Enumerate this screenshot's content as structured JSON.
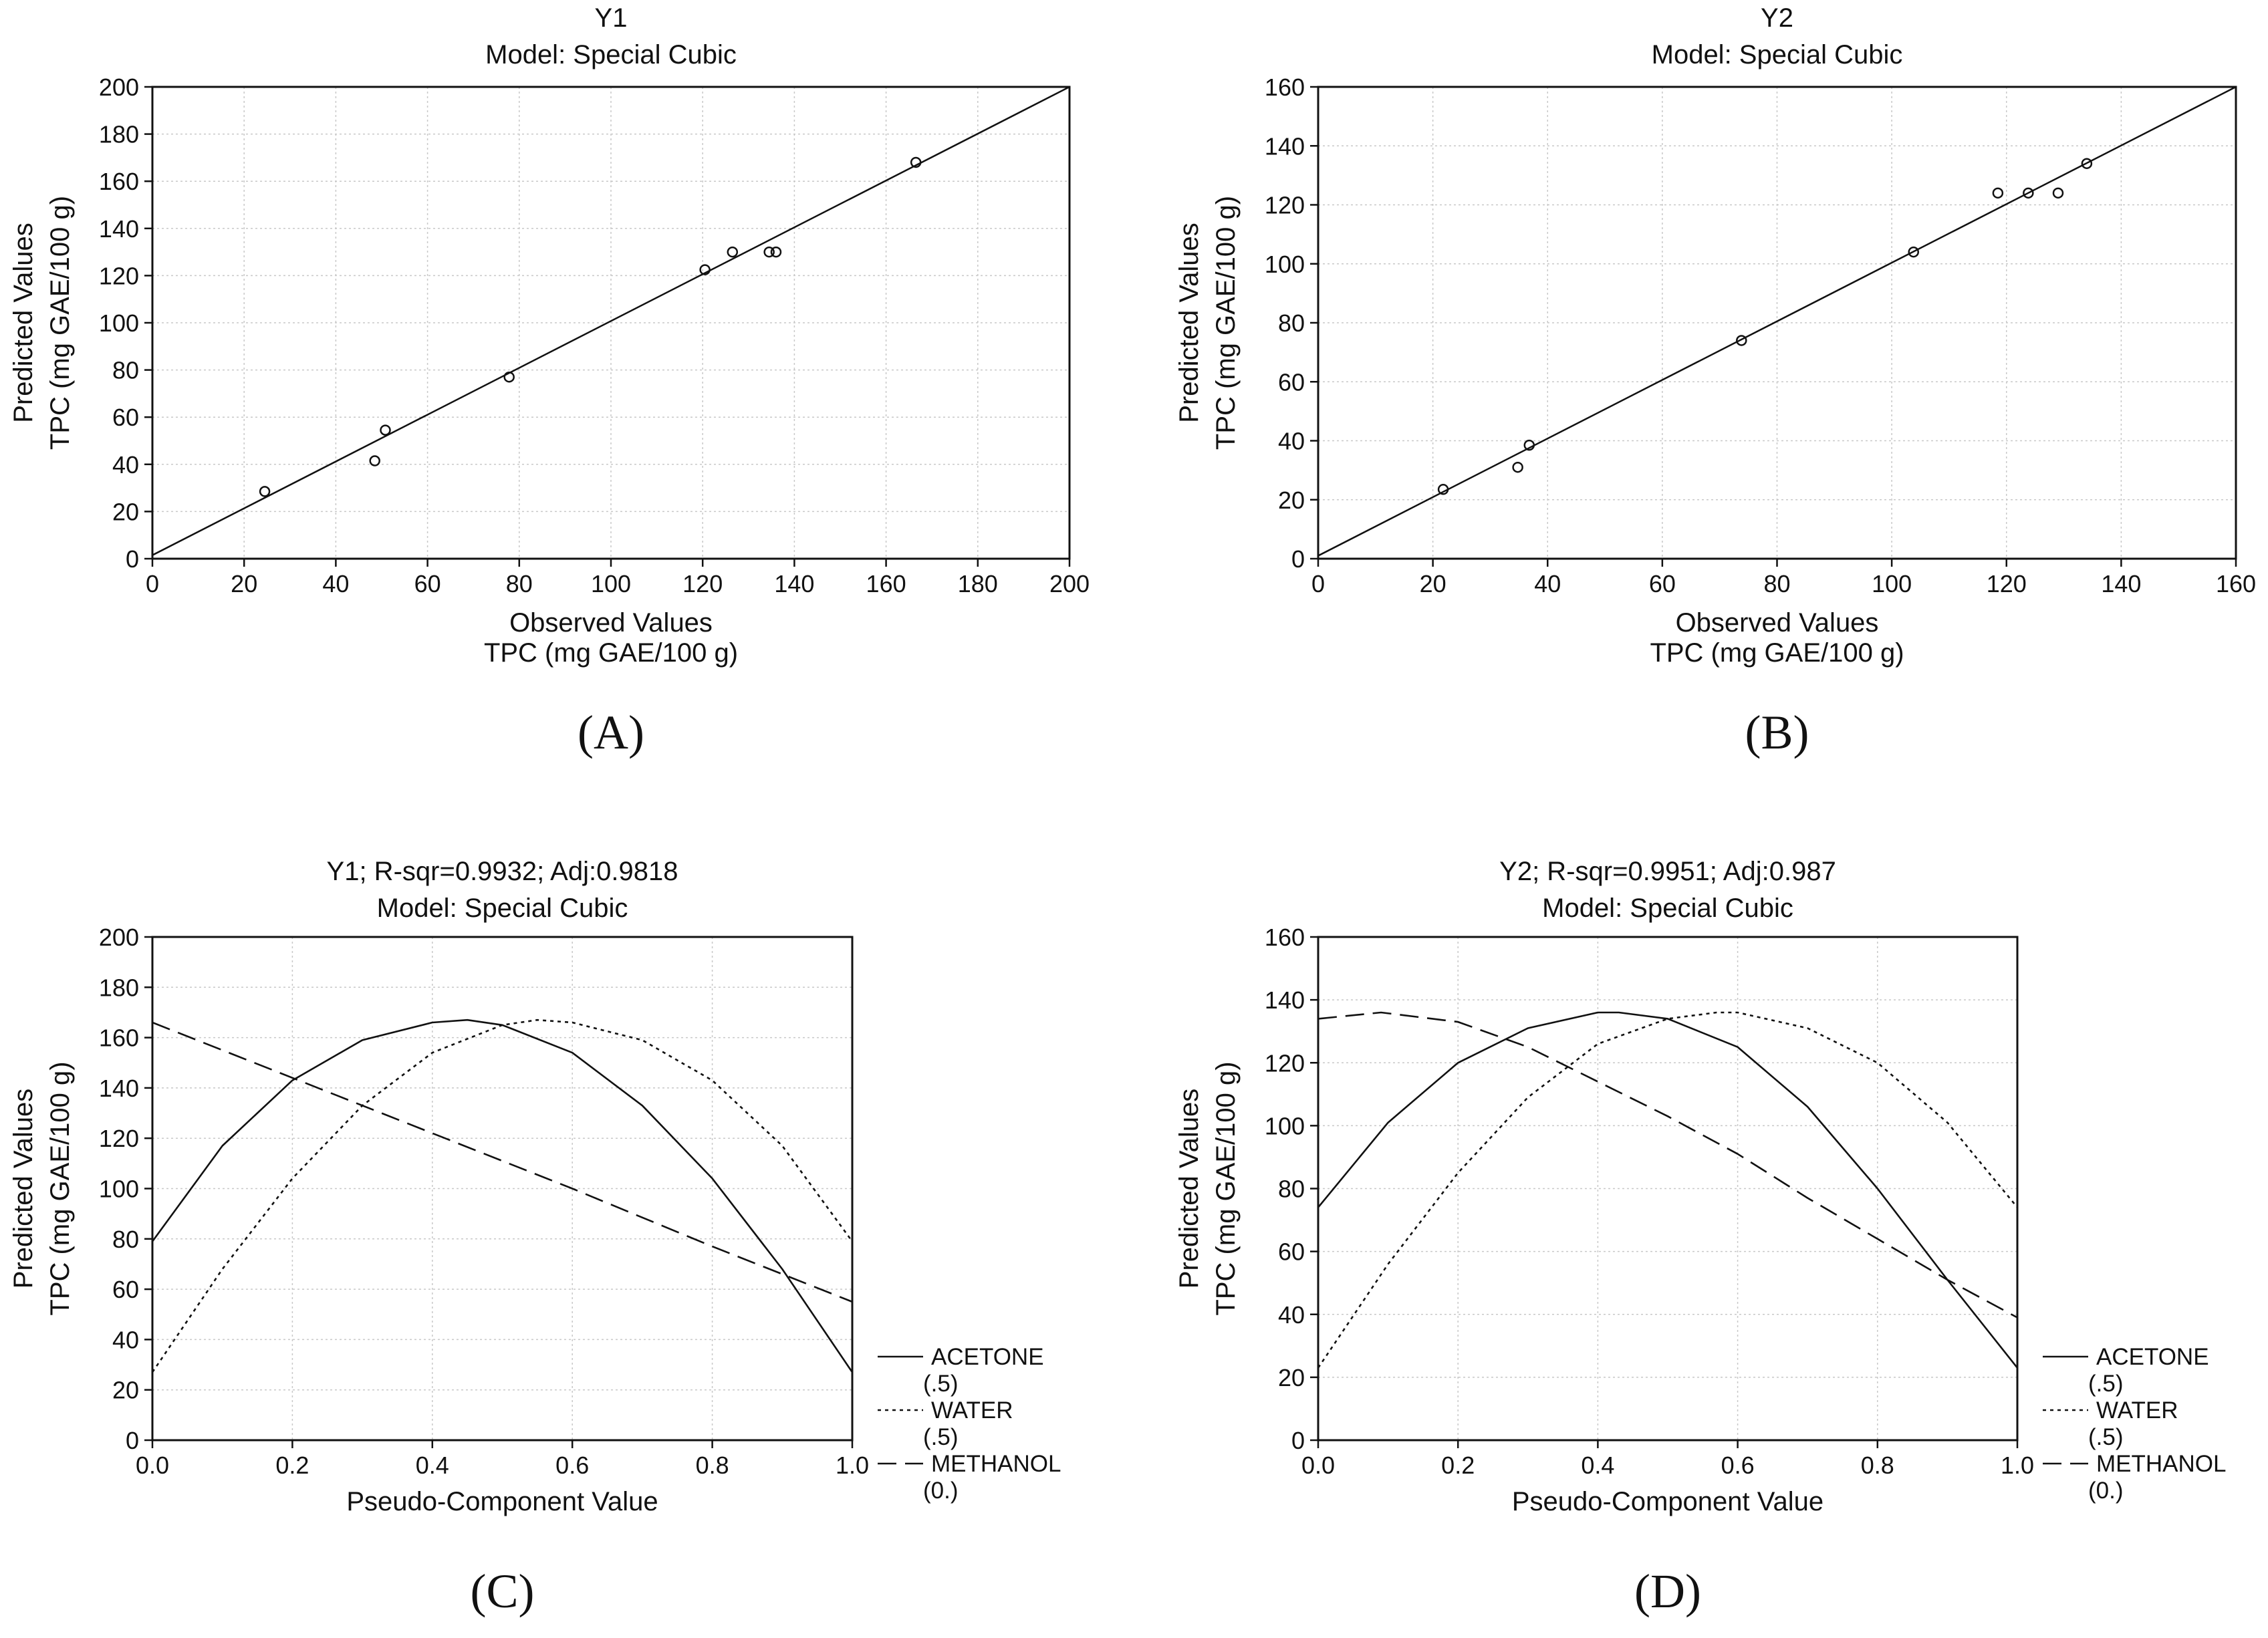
{
  "chart_data": [
    {
      "type": "scatter",
      "title": "Y1",
      "subtitle": "Model: Special Cubic",
      "xlabel": [
        "Observed Values",
        "TPC (mg GAE/100 g)"
      ],
      "ylabel": [
        "Predicted Values",
        "TPC (mg GAE/100 g)"
      ],
      "xlim": [
        0,
        200
      ],
      "ylim": [
        0,
        200
      ],
      "xticks": [
        0,
        20,
        40,
        60,
        80,
        100,
        120,
        140,
        160,
        180,
        200
      ],
      "yticks": [
        0,
        20,
        40,
        60,
        80,
        100,
        120,
        140,
        160,
        180,
        200
      ],
      "grid": true,
      "points": [
        [
          24.5,
          28.5
        ],
        [
          48.5,
          41.5
        ],
        [
          50.8,
          54.5
        ],
        [
          77.8,
          77.0
        ],
        [
          120.5,
          122.5
        ],
        [
          126.5,
          130.0
        ],
        [
          134.5,
          130.0
        ],
        [
          136.0,
          130.0
        ],
        [
          166.5,
          168.0
        ]
      ],
      "fit_line": [
        [
          0,
          1.5
        ],
        [
          200,
          200
        ]
      ],
      "panel_label": "(A)"
    },
    {
      "type": "scatter",
      "title": "Y2",
      "subtitle": "Model: Special Cubic",
      "xlabel": [
        "Observed Values",
        "TPC (mg GAE/100 g)"
      ],
      "ylabel": [
        "Predicted Values",
        "TPC (mg GAE/100 g)"
      ],
      "xlim": [
        0,
        160
      ],
      "ylim": [
        0,
        160
      ],
      "xticks": [
        0,
        20,
        40,
        60,
        80,
        100,
        120,
        140,
        160
      ],
      "yticks": [
        0,
        20,
        40,
        60,
        80,
        100,
        120,
        140,
        160
      ],
      "grid": true,
      "points": [
        [
          21.8,
          23.5
        ],
        [
          34.8,
          31.0
        ],
        [
          36.8,
          38.5
        ],
        [
          73.8,
          74.0
        ],
        [
          103.8,
          104.0
        ],
        [
          118.5,
          124.0
        ],
        [
          123.8,
          124.0
        ],
        [
          129.0,
          124.0
        ],
        [
          134.0,
          134.0
        ]
      ],
      "fit_line": [
        [
          0,
          1.0
        ],
        [
          160,
          160
        ]
      ],
      "panel_label": "(B)"
    },
    {
      "type": "line",
      "title": "Y1; R-sqr=0.9932; Adj:0.9818",
      "subtitle": "Model: Special Cubic",
      "xlabel": [
        "Pseudo-Component Value"
      ],
      "ylabel": [
        "Predicted Values",
        "TPC (mg GAE/100 g)"
      ],
      "xlim": [
        0,
        1
      ],
      "ylim": [
        0,
        200
      ],
      "xticks": [
        0,
        0.2,
        0.4,
        0.6,
        0.8,
        1
      ],
      "xtick_labels": [
        "0.0",
        "0.2",
        "0.4",
        "0.6",
        "0.8",
        "1.0"
      ],
      "yticks": [
        0,
        20,
        40,
        60,
        80,
        100,
        120,
        140,
        160,
        180,
        200
      ],
      "grid": true,
      "series": [
        {
          "name": "ACETONE",
          "note": "(.5)",
          "style": "solid",
          "x": [
            0,
            0.1,
            0.2,
            0.3,
            0.4,
            0.45,
            0.5,
            0.6,
            0.7,
            0.8,
            0.9,
            1.0
          ],
          "y": [
            79,
            117,
            143,
            159,
            166,
            167,
            165,
            154,
            133,
            104,
            68,
            27
          ]
        },
        {
          "name": "WATER",
          "note": "(.5)",
          "style": "dotted",
          "x": [
            0,
            0.1,
            0.2,
            0.3,
            0.4,
            0.5,
            0.55,
            0.6,
            0.7,
            0.8,
            0.9,
            1.0
          ],
          "y": [
            27,
            68,
            104,
            133,
            154,
            165,
            167,
            166,
            159,
            143,
            117,
            79
          ]
        },
        {
          "name": "METHANOL",
          "note": "(0.)",
          "style": "dashed",
          "x": [
            0,
            0.2,
            0.4,
            0.6,
            0.8,
            1.0
          ],
          "y": [
            166,
            144,
            122,
            100,
            77,
            55
          ]
        }
      ],
      "panel_label": "(C)"
    },
    {
      "type": "line",
      "title": "Y2; R-sqr=0.9951; Adj:0.987",
      "subtitle": "Model: Special Cubic",
      "xlabel": [
        "Pseudo-Component Value"
      ],
      "ylabel": [
        "Predicted Values",
        "TPC (mg GAE/100 g)"
      ],
      "xlim": [
        0,
        1
      ],
      "ylim": [
        0,
        160
      ],
      "xticks": [
        0,
        0.2,
        0.4,
        0.6,
        0.8,
        1
      ],
      "xtick_labels": [
        "0.0",
        "0.2",
        "0.4",
        "0.6",
        "0.8",
        "1.0"
      ],
      "yticks": [
        0,
        20,
        40,
        60,
        80,
        100,
        120,
        140,
        160
      ],
      "grid": true,
      "series": [
        {
          "name": "ACETONE",
          "note": "(.5)",
          "style": "solid",
          "x": [
            0,
            0.1,
            0.2,
            0.3,
            0.4,
            0.43,
            0.5,
            0.6,
            0.7,
            0.8,
            0.9,
            1.0
          ],
          "y": [
            74,
            101,
            120,
            131,
            136,
            136,
            134,
            125,
            106,
            80,
            51,
            23
          ]
        },
        {
          "name": "WATER",
          "note": "(.5)",
          "style": "dotted",
          "x": [
            0,
            0.1,
            0.2,
            0.3,
            0.4,
            0.5,
            0.57,
            0.6,
            0.7,
            0.8,
            0.9,
            1.0
          ],
          "y": [
            23,
            56,
            85,
            109,
            126,
            134,
            136,
            136,
            131,
            120,
            101,
            74
          ]
        },
        {
          "name": "METHANOL",
          "note": "(0.)",
          "style": "dashed",
          "x": [
            0,
            0.09,
            0.2,
            0.3,
            0.4,
            0.5,
            0.6,
            0.7,
            0.8,
            0.9,
            1.0
          ],
          "y": [
            134,
            136,
            133,
            125,
            114,
            103,
            91,
            77,
            64,
            51,
            39
          ]
        }
      ],
      "panel_label": "(D)"
    }
  ]
}
